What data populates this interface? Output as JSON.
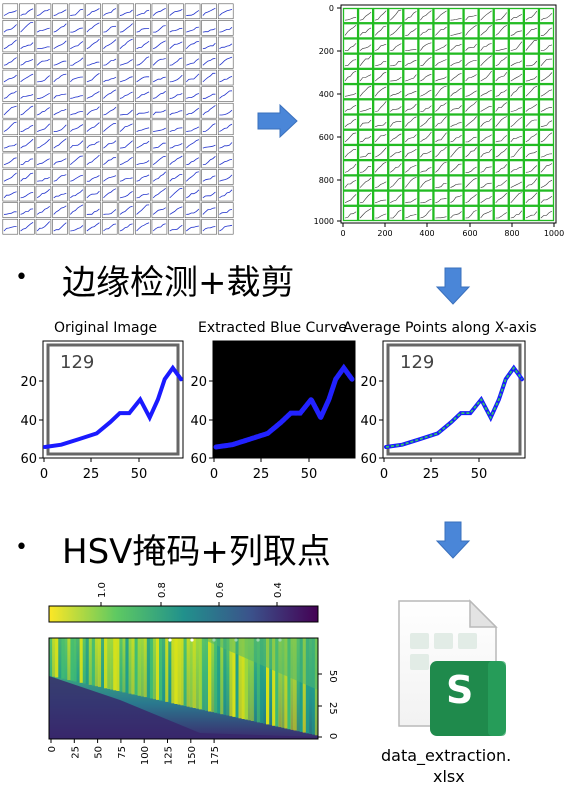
{
  "steps": [
    {
      "text": "边缘检测+裁剪"
    },
    {
      "text": "HSV掩码+列取点"
    }
  ],
  "grid_panel": {
    "cells_per_side": 14,
    "y_ticks": [
      "0",
      "200",
      "400",
      "600",
      "800",
      "1000"
    ],
    "x_ticks": [
      "0",
      "200",
      "400",
      "600",
      "800",
      "1000"
    ],
    "box_color": "#22bb22"
  },
  "plots": {
    "titles": [
      "Original Image",
      "Extracted Blue Curve",
      "Average Points along X-axis"
    ],
    "label_number": "129",
    "y_ticks": [
      "20",
      "40",
      "60"
    ],
    "x_ticks": [
      "0",
      "25",
      "50"
    ]
  },
  "heatmap": {
    "colorbar_ticks": [
      "1.0",
      "0.8",
      "0.6",
      "0.4"
    ],
    "y_ticks": [
      "50",
      "25",
      "0"
    ],
    "x_ticks": [
      "0",
      "25",
      "50",
      "75",
      "100",
      "125",
      "150",
      "175"
    ]
  },
  "file": {
    "name_line1": "data_extraction.",
    "name_line2": "xlsx",
    "icon_letter": "S"
  },
  "colors": {
    "arrow": "#4a86d8",
    "curve": "#1a1aff",
    "green": "#1f8a4c"
  }
}
